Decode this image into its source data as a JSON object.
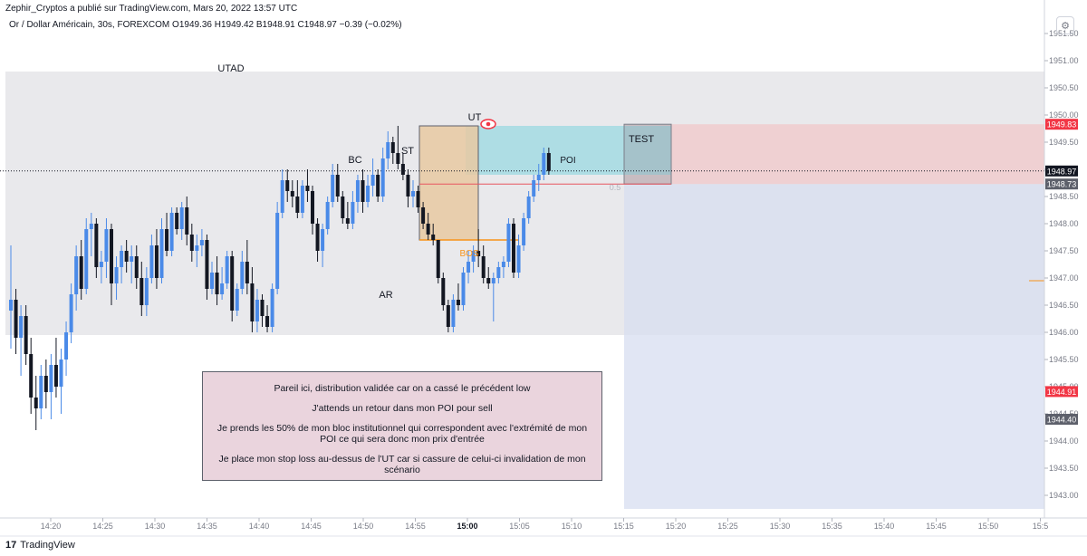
{
  "header": {
    "publish_line": "Zephir_Cryptos a publié sur TradingView.com, Mars 20, 2022 13:57 UTC",
    "symbol_line": "Or / Dollar Américain, 30s, FOREXCOM  O1949.36  H1949.42  B1948.91  C1948.97  −0.39 (−0.02%)"
  },
  "footer": {
    "logo_text": "TradingView",
    "logo_mark": "17"
  },
  "toolbar": {
    "settings_icon": "gear-icon"
  },
  "note": {
    "paragraphs": [
      "Pareil ici, distribution validée car on a cassé le précédent low",
      "J'attends un retour dans mon POI pour sell",
      "Je prends les 50% de mon bloc institutionnel qui correspondent avec l'extrémité de mon POI ce qui sera donc mon prix d'entrée",
      "Je place mon stop loss au-dessus de l'UT car si cassure de celui-ci invalidation de mon scénario"
    ]
  },
  "chart_data": {
    "type": "candlestick",
    "x_axis": {
      "tick_labels": [
        "14:20",
        "14:25",
        "14:30",
        "14:35",
        "14:40",
        "14:45",
        "14:50",
        "14:55",
        "15:00",
        "15:05",
        "15:10",
        "15:15",
        "15:20",
        "15:25",
        "15:30",
        "15:35",
        "15:40",
        "15:45",
        "15:50",
        "15:5"
      ],
      "bold_tick": "15:00"
    },
    "y_axis": {
      "range": [
        1942.75,
        1952.05
      ],
      "tick_labels": [
        "1951.50",
        "1951.00",
        "1950.50",
        "1950.00",
        "1949.50",
        "1949.00",
        "1948.50",
        "1948.00",
        "1947.50",
        "1947.00",
        "1946.50",
        "1946.00",
        "1945.50",
        "1945.00",
        "1944.50",
        "1944.00",
        "1943.50",
        "1943.00"
      ],
      "price_tags": [
        {
          "label": "1949.83",
          "value": 1949.83,
          "color": "#f23645"
        },
        {
          "label": "1948.97",
          "value": 1948.97,
          "color": "#131722"
        },
        {
          "label": "1948.73",
          "value": 1948.73,
          "color": "#5d606b"
        },
        {
          "label": "1944.91",
          "value": 1944.91,
          "color": "#f23645"
        },
        {
          "label": "1944.40",
          "value": 1944.4,
          "color": "#5d606b"
        }
      ]
    },
    "colors": {
      "up": "#4a8ae8",
      "down": "#131722"
    },
    "candles": [
      {
        "o": 1946.4,
        "h": 1947.6,
        "l": 1945.7,
        "c": 1946.6
      },
      {
        "o": 1946.6,
        "h": 1946.8,
        "l": 1945.6,
        "c": 1945.9
      },
      {
        "o": 1945.9,
        "h": 1946.5,
        "l": 1945.2,
        "c": 1946.3
      },
      {
        "o": 1946.3,
        "h": 1946.5,
        "l": 1945.4,
        "c": 1945.6
      },
      {
        "o": 1945.6,
        "h": 1945.9,
        "l": 1944.5,
        "c": 1944.8
      },
      {
        "o": 1944.8,
        "h": 1945.2,
        "l": 1944.2,
        "c": 1944.6
      },
      {
        "o": 1944.6,
        "h": 1945.4,
        "l": 1944.4,
        "c": 1945.2
      },
      {
        "o": 1945.2,
        "h": 1945.5,
        "l": 1944.6,
        "c": 1944.9
      },
      {
        "o": 1944.9,
        "h": 1945.6,
        "l": 1944.4,
        "c": 1945.4
      },
      {
        "o": 1945.4,
        "h": 1945.9,
        "l": 1944.8,
        "c": 1945.0
      },
      {
        "o": 1945.0,
        "h": 1945.7,
        "l": 1944.5,
        "c": 1945.5
      },
      {
        "o": 1945.5,
        "h": 1946.2,
        "l": 1945.2,
        "c": 1946.0
      },
      {
        "o": 1946.0,
        "h": 1946.9,
        "l": 1945.8,
        "c": 1946.7
      },
      {
        "o": 1946.7,
        "h": 1947.6,
        "l": 1946.4,
        "c": 1947.4
      },
      {
        "o": 1947.4,
        "h": 1947.7,
        "l": 1946.6,
        "c": 1946.8
      },
      {
        "o": 1946.8,
        "h": 1948.1,
        "l": 1946.7,
        "c": 1947.9
      },
      {
        "o": 1947.9,
        "h": 1948.2,
        "l": 1947.4,
        "c": 1948.0
      },
      {
        "o": 1948.0,
        "h": 1948.1,
        "l": 1947.0,
        "c": 1947.2
      },
      {
        "o": 1947.2,
        "h": 1947.5,
        "l": 1946.9,
        "c": 1947.3
      },
      {
        "o": 1947.3,
        "h": 1948.1,
        "l": 1947.0,
        "c": 1947.9
      },
      {
        "o": 1947.9,
        "h": 1948.0,
        "l": 1946.5,
        "c": 1946.9
      },
      {
        "o": 1946.9,
        "h": 1947.4,
        "l": 1946.6,
        "c": 1947.2
      },
      {
        "o": 1947.2,
        "h": 1947.6,
        "l": 1946.9,
        "c": 1947.5
      },
      {
        "o": 1947.5,
        "h": 1947.7,
        "l": 1947.1,
        "c": 1947.3
      },
      {
        "o": 1947.3,
        "h": 1947.6,
        "l": 1946.9,
        "c": 1947.4
      },
      {
        "o": 1947.4,
        "h": 1947.6,
        "l": 1946.8,
        "c": 1947.0
      },
      {
        "o": 1947.0,
        "h": 1947.3,
        "l": 1946.3,
        "c": 1946.5
      },
      {
        "o": 1946.5,
        "h": 1947.2,
        "l": 1946.3,
        "c": 1947.0
      },
      {
        "o": 1947.0,
        "h": 1947.8,
        "l": 1946.9,
        "c": 1947.6
      },
      {
        "o": 1947.6,
        "h": 1947.9,
        "l": 1946.8,
        "c": 1947.0
      },
      {
        "o": 1947.0,
        "h": 1948.1,
        "l": 1946.9,
        "c": 1947.9
      },
      {
        "o": 1947.9,
        "h": 1948.2,
        "l": 1947.4,
        "c": 1947.5
      },
      {
        "o": 1947.5,
        "h": 1948.3,
        "l": 1947.4,
        "c": 1948.2
      },
      {
        "o": 1948.2,
        "h": 1948.3,
        "l": 1947.8,
        "c": 1947.9
      },
      {
        "o": 1947.9,
        "h": 1948.4,
        "l": 1947.7,
        "c": 1948.3
      },
      {
        "o": 1948.3,
        "h": 1948.5,
        "l": 1947.6,
        "c": 1947.8
      },
      {
        "o": 1947.8,
        "h": 1948.0,
        "l": 1947.3,
        "c": 1947.5
      },
      {
        "o": 1947.5,
        "h": 1947.8,
        "l": 1947.2,
        "c": 1947.6
      },
      {
        "o": 1947.6,
        "h": 1947.9,
        "l": 1947.4,
        "c": 1947.7
      },
      {
        "o": 1947.7,
        "h": 1947.8,
        "l": 1946.6,
        "c": 1946.8
      },
      {
        "o": 1946.8,
        "h": 1947.3,
        "l": 1946.7,
        "c": 1947.1
      },
      {
        "o": 1947.1,
        "h": 1947.4,
        "l": 1946.5,
        "c": 1946.7
      },
      {
        "o": 1946.7,
        "h": 1947.2,
        "l": 1946.6,
        "c": 1946.9
      },
      {
        "o": 1946.9,
        "h": 1947.5,
        "l": 1946.8,
        "c": 1947.4
      },
      {
        "o": 1947.4,
        "h": 1947.5,
        "l": 1946.2,
        "c": 1946.4
      },
      {
        "o": 1946.4,
        "h": 1946.9,
        "l": 1946.3,
        "c": 1946.8
      },
      {
        "o": 1946.8,
        "h": 1947.5,
        "l": 1946.7,
        "c": 1947.3
      },
      {
        "o": 1947.3,
        "h": 1947.7,
        "l": 1946.7,
        "c": 1946.9
      },
      {
        "o": 1946.9,
        "h": 1947.2,
        "l": 1946.0,
        "c": 1946.2
      },
      {
        "o": 1946.2,
        "h": 1946.8,
        "l": 1946.0,
        "c": 1946.6
      },
      {
        "o": 1946.6,
        "h": 1946.7,
        "l": 1946.1,
        "c": 1946.3
      },
      {
        "o": 1946.3,
        "h": 1946.5,
        "l": 1946.0,
        "c": 1946.1
      },
      {
        "o": 1946.1,
        "h": 1946.9,
        "l": 1946.0,
        "c": 1946.8
      },
      {
        "o": 1946.8,
        "h": 1948.4,
        "l": 1946.7,
        "c": 1948.2
      },
      {
        "o": 1948.2,
        "h": 1949.0,
        "l": 1948.1,
        "c": 1948.8
      },
      {
        "o": 1948.8,
        "h": 1949.0,
        "l": 1948.4,
        "c": 1948.6
      },
      {
        "o": 1948.6,
        "h": 1948.8,
        "l": 1948.3,
        "c": 1948.5
      },
      {
        "o": 1948.5,
        "h": 1948.8,
        "l": 1948.1,
        "c": 1948.2
      },
      {
        "o": 1948.2,
        "h": 1948.8,
        "l": 1948.1,
        "c": 1948.7
      },
      {
        "o": 1948.7,
        "h": 1949.0,
        "l": 1948.4,
        "c": 1948.6
      },
      {
        "o": 1948.6,
        "h": 1948.7,
        "l": 1947.8,
        "c": 1948.0
      },
      {
        "o": 1948.0,
        "h": 1948.1,
        "l": 1947.3,
        "c": 1947.5
      },
      {
        "o": 1947.5,
        "h": 1948.0,
        "l": 1947.2,
        "c": 1947.9
      },
      {
        "o": 1947.9,
        "h": 1948.5,
        "l": 1947.8,
        "c": 1948.4
      },
      {
        "o": 1948.4,
        "h": 1949.1,
        "l": 1948.3,
        "c": 1948.9
      },
      {
        "o": 1948.9,
        "h": 1949.1,
        "l": 1948.4,
        "c": 1948.5
      },
      {
        "o": 1948.5,
        "h": 1948.6,
        "l": 1948.0,
        "c": 1948.1
      },
      {
        "o": 1948.1,
        "h": 1948.4,
        "l": 1947.9,
        "c": 1948.0
      },
      {
        "o": 1948.0,
        "h": 1948.6,
        "l": 1947.9,
        "c": 1948.4
      },
      {
        "o": 1948.4,
        "h": 1948.9,
        "l": 1948.2,
        "c": 1948.8
      },
      {
        "o": 1948.8,
        "h": 1949.0,
        "l": 1948.2,
        "c": 1948.4
      },
      {
        "o": 1948.4,
        "h": 1948.9,
        "l": 1948.3,
        "c": 1948.7
      },
      {
        "o": 1948.7,
        "h": 1949.2,
        "l": 1948.5,
        "c": 1948.9
      },
      {
        "o": 1948.9,
        "h": 1949.0,
        "l": 1948.4,
        "c": 1948.5
      },
      {
        "o": 1948.5,
        "h": 1949.4,
        "l": 1948.4,
        "c": 1949.2
      },
      {
        "o": 1949.2,
        "h": 1949.7,
        "l": 1949.0,
        "c": 1949.5
      },
      {
        "o": 1949.5,
        "h": 1949.6,
        "l": 1949.1,
        "c": 1949.3
      },
      {
        "o": 1949.3,
        "h": 1949.8,
        "l": 1949.0,
        "c": 1949.1
      },
      {
        "o": 1949.1,
        "h": 1949.3,
        "l": 1948.8,
        "c": 1948.9
      },
      {
        "o": 1948.9,
        "h": 1949.0,
        "l": 1948.3,
        "c": 1948.5
      },
      {
        "o": 1948.5,
        "h": 1948.8,
        "l": 1948.3,
        "c": 1948.6
      },
      {
        "o": 1948.6,
        "h": 1948.7,
        "l": 1948.2,
        "c": 1948.3
      },
      {
        "o": 1948.3,
        "h": 1948.4,
        "l": 1947.9,
        "c": 1948.0
      },
      {
        "o": 1948.0,
        "h": 1948.2,
        "l": 1947.7,
        "c": 1947.8
      },
      {
        "o": 1947.8,
        "h": 1948.0,
        "l": 1947.6,
        "c": 1947.7
      },
      {
        "o": 1947.7,
        "h": 1947.7,
        "l": 1946.9,
        "c": 1947.0
      },
      {
        "o": 1947.0,
        "h": 1947.1,
        "l": 1946.4,
        "c": 1946.5
      },
      {
        "o": 1946.5,
        "h": 1946.6,
        "l": 1946.0,
        "c": 1946.1
      },
      {
        "o": 1946.1,
        "h": 1946.7,
        "l": 1946.0,
        "c": 1946.6
      },
      {
        "o": 1946.6,
        "h": 1946.9,
        "l": 1946.4,
        "c": 1946.5
      },
      {
        "o": 1946.5,
        "h": 1947.2,
        "l": 1946.4,
        "c": 1947.1
      },
      {
        "o": 1947.1,
        "h": 1947.5,
        "l": 1946.9,
        "c": 1947.3
      },
      {
        "o": 1947.3,
        "h": 1947.6,
        "l": 1947.1,
        "c": 1947.5
      },
      {
        "o": 1947.5,
        "h": 1947.9,
        "l": 1947.2,
        "c": 1947.4
      },
      {
        "o": 1947.4,
        "h": 1947.6,
        "l": 1946.9,
        "c": 1947.0
      },
      {
        "o": 1947.0,
        "h": 1947.2,
        "l": 1946.8,
        "c": 1946.9
      },
      {
        "o": 1946.9,
        "h": 1947.1,
        "l": 1946.2,
        "c": 1947.0
      },
      {
        "o": 1947.0,
        "h": 1947.3,
        "l": 1946.9,
        "c": 1947.2
      },
      {
        "o": 1947.2,
        "h": 1947.4,
        "l": 1947.0,
        "c": 1947.3
      },
      {
        "o": 1947.3,
        "h": 1948.1,
        "l": 1947.2,
        "c": 1948.0
      },
      {
        "o": 1948.0,
        "h": 1948.1,
        "l": 1947.0,
        "c": 1947.1
      },
      {
        "o": 1947.1,
        "h": 1947.8,
        "l": 1947.0,
        "c": 1947.6
      },
      {
        "o": 1947.6,
        "h": 1948.2,
        "l": 1947.5,
        "c": 1948.1
      },
      {
        "o": 1948.1,
        "h": 1948.6,
        "l": 1948.0,
        "c": 1948.5
      },
      {
        "o": 1948.5,
        "h": 1948.9,
        "l": 1948.4,
        "c": 1948.8
      },
      {
        "o": 1948.8,
        "h": 1949.1,
        "l": 1948.6,
        "c": 1948.9
      },
      {
        "o": 1948.9,
        "h": 1949.4,
        "l": 1948.8,
        "c": 1949.3
      },
      {
        "o": 1949.3,
        "h": 1949.4,
        "l": 1948.9,
        "c": 1948.97
      }
    ],
    "zones": [
      {
        "name": "range",
        "top": 1950.8,
        "bottom": 1945.95,
        "color": "#e1e2e5"
      },
      {
        "name": "poi",
        "label": "POI",
        "top": 1949.8,
        "bottom": 1948.9,
        "color": "#a7dbe3"
      },
      {
        "name": "order-block",
        "top": 1949.8,
        "bottom": 1947.7,
        "color": "#e8c9a2"
      },
      {
        "name": "stop",
        "top": 1949.83,
        "bottom": 1948.73,
        "color": "#f0c7ca"
      },
      {
        "name": "target",
        "top": 1948.73,
        "bottom": 1942.75,
        "color": "#d7ddf0"
      }
    ],
    "levels": [
      {
        "name": "bos",
        "label": "BOS",
        "value": 1947.7,
        "color": "#f7931a"
      },
      {
        "name": "fifty-percent",
        "label": "0.5",
        "value": 1948.73,
        "color": "#e8545f"
      },
      {
        "name": "last-price",
        "value": 1948.97,
        "color": "#131722"
      }
    ],
    "annotations": [
      "UTAD",
      "UT",
      "BC",
      "ST",
      "AR",
      "TEST",
      "POI",
      "BOS",
      "0.5"
    ]
  }
}
